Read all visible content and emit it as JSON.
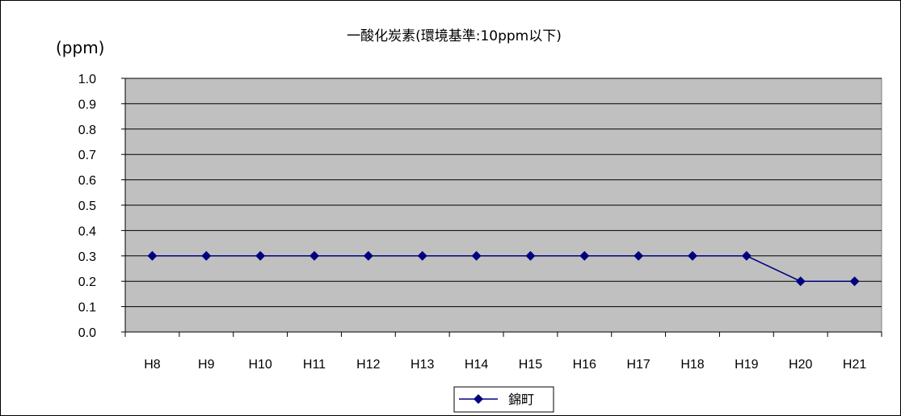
{
  "chart_data": {
    "type": "line",
    "title": "一酸化炭素(環境基準:10ppm以下)",
    "ylabel": "(ppm)",
    "xlabel": "",
    "categories": [
      "H8",
      "H9",
      "H10",
      "H11",
      "H12",
      "H13",
      "H14",
      "H15",
      "H16",
      "H17",
      "H18",
      "H19",
      "H20",
      "H21"
    ],
    "series": [
      {
        "name": "錦町",
        "values": [
          0.3,
          0.3,
          0.3,
          0.3,
          0.3,
          0.3,
          0.3,
          0.3,
          0.3,
          0.3,
          0.3,
          0.3,
          0.2,
          0.2
        ],
        "color": "#000080"
      }
    ],
    "ylim": [
      0,
      1.0
    ],
    "yticks": [
      "0.0",
      "0.1",
      "0.2",
      "0.3",
      "0.4",
      "0.5",
      "0.6",
      "0.7",
      "0.8",
      "0.9",
      "1.0"
    ],
    "grid": true,
    "plot_background": "#c0c0c0",
    "legend_position": "bottom"
  }
}
